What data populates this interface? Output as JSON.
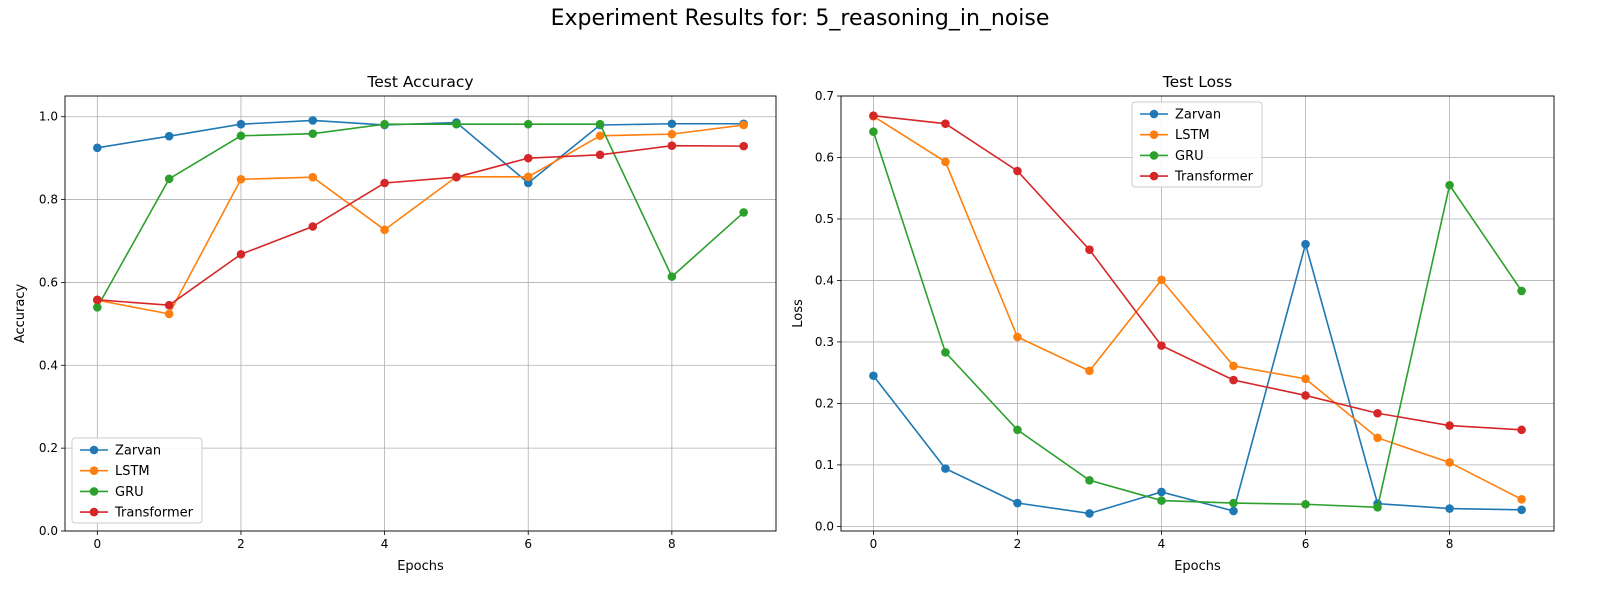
{
  "figure": {
    "suptitle": "Experiment Results for: 5_reasoning_in_noise"
  },
  "chart_data": [
    {
      "type": "line",
      "title": "Test Accuracy",
      "xlabel": "Epochs",
      "ylabel": "Accuracy",
      "xlim": [
        -0.45,
        9.45
      ],
      "ylim": [
        0.0,
        1.05
      ],
      "xticks": [
        "0",
        "2",
        "4",
        "6",
        "8"
      ],
      "yticks": [
        "0.0",
        "0.2",
        "0.4",
        "0.6",
        "0.8",
        "1.0"
      ],
      "grid": true,
      "legend": "lower-left",
      "x": [
        0,
        1,
        2,
        3,
        4,
        5,
        6,
        7,
        8,
        9
      ],
      "series": [
        {
          "name": "Zarvan",
          "color": "#1f77b4",
          "values": [
            0.925,
            0.953,
            0.982,
            0.991,
            0.98,
            0.986,
            0.84,
            0.98,
            0.983,
            0.983
          ]
        },
        {
          "name": "LSTM",
          "color": "#ff7f0e",
          "values": [
            0.557,
            0.524,
            0.849,
            0.854,
            0.727,
            0.855,
            0.855,
            0.954,
            0.958,
            0.98
          ]
        },
        {
          "name": "GRU",
          "color": "#2ca02c",
          "values": [
            0.54,
            0.85,
            0.954,
            0.959,
            0.982,
            0.982,
            0.982,
            0.982,
            0.614,
            0.769
          ]
        },
        {
          "name": "Transformer",
          "color": "#d62728",
          "values": [
            0.558,
            0.545,
            0.668,
            0.735,
            0.84,
            0.854,
            0.9,
            0.908,
            0.93,
            0.929
          ]
        }
      ]
    },
    {
      "type": "line",
      "title": "Test Loss",
      "xlabel": "Epochs",
      "ylabel": "Loss",
      "xlim": [
        -0.45,
        9.45
      ],
      "ylim": [
        -0.0075,
        0.7
      ],
      "xticks": [
        "0",
        "2",
        "4",
        "6",
        "8"
      ],
      "yticks": [
        "0.0",
        "0.1",
        "0.2",
        "0.3",
        "0.4",
        "0.5",
        "0.6",
        "0.7"
      ],
      "grid": true,
      "legend": "upper-center",
      "x": [
        0,
        1,
        2,
        3,
        4,
        5,
        6,
        7,
        8,
        9
      ],
      "series": [
        {
          "name": "Zarvan",
          "color": "#1f77b4",
          "values": [
            0.245,
            0.094,
            0.038,
            0.021,
            0.056,
            0.025,
            0.459,
            0.037,
            0.029,
            0.027
          ]
        },
        {
          "name": "LSTM",
          "color": "#ff7f0e",
          "values": [
            0.667,
            0.593,
            0.308,
            0.253,
            0.401,
            0.261,
            0.24,
            0.144,
            0.104,
            0.044
          ]
        },
        {
          "name": "GRU",
          "color": "#2ca02c",
          "values": [
            0.642,
            0.283,
            0.157,
            0.075,
            0.042,
            0.038,
            0.036,
            0.031,
            0.555,
            0.383
          ]
        },
        {
          "name": "Transformer",
          "color": "#d62728",
          "values": [
            0.668,
            0.655,
            0.578,
            0.45,
            0.294,
            0.238,
            0.213,
            0.184,
            0.164,
            0.157
          ]
        }
      ]
    }
  ]
}
